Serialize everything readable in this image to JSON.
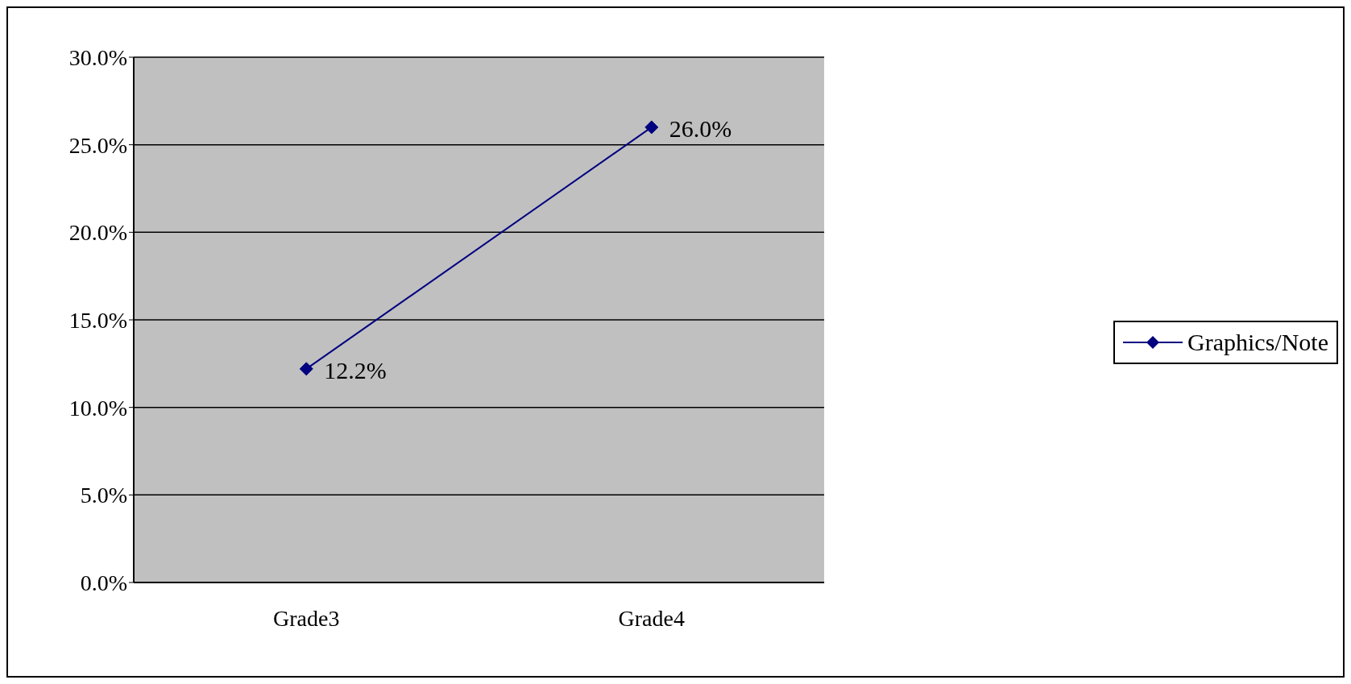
{
  "chart_data": {
    "type": "line",
    "categories": [
      "Grade3",
      "Grade4"
    ],
    "series": [
      {
        "name": "Graphics/Note",
        "color": "#000080",
        "values": [
          12.2,
          26.0
        ],
        "value_labels": [
          "12.2%",
          "26.0%"
        ]
      }
    ],
    "ylim": [
      0,
      30
    ],
    "yticks": [
      {
        "value": 0,
        "label": "0.0%"
      },
      {
        "value": 5,
        "label": "5.0%"
      },
      {
        "value": 10,
        "label": "10.0%"
      },
      {
        "value": 15,
        "label": "15.0%"
      },
      {
        "value": 20,
        "label": "20.0%"
      },
      {
        "value": 25,
        "label": "25.0%"
      },
      {
        "value": 30,
        "label": "30.0%"
      }
    ],
    "grid": "y",
    "legend": "right",
    "marker": "diamond"
  }
}
